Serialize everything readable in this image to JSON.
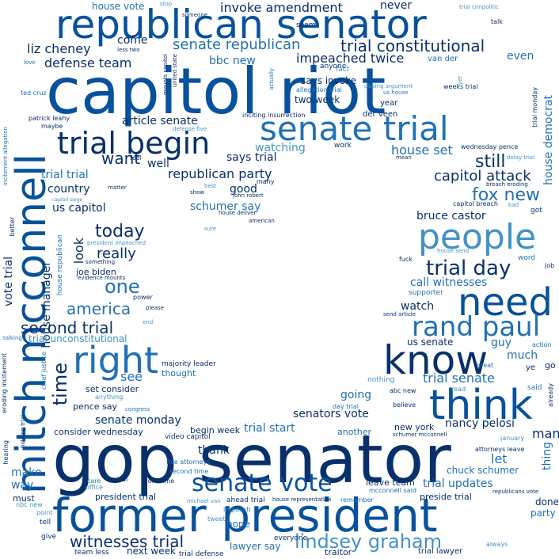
{
  "colors": {
    "background": "#ffffff",
    "palette": [
      "#08306b",
      "#08519c",
      "#2171b5",
      "#4292c6",
      "#6baed6",
      "#9ecae1"
    ]
  },
  "words": {
    "gop_senator": "gop senator",
    "capitol_riot": "capitol riot",
    "former_president": "former president",
    "republican_senator": "republican senator",
    "senate_trial": "senate trial",
    "mitch_mcconnell": "mitch mcconnell",
    "know": "know",
    "need": "need",
    "think": "think",
    "people": "people",
    "right": "right",
    "trial_begin": "trial begin",
    "rand_paul": "rand paul",
    "senate_vote": "senate vote",
    "lindsey_graham": "lindsey graham",
    "trial_day": "trial day",
    "trial_constitutional": "trial constitutional",
    "one": "one",
    "second_trial": "second trial",
    "fox_new": "fox new",
    "today": "today",
    "america": "america",
    "time": "time",
    "witnesses_trial": "witnesses trial",
    "really": "really",
    "want": "want",
    "still": "still",
    "capitol_attack": "capitol attack",
    "senate_republican": "senate republican",
    "republican_party": "republican party",
    "liz_cheney": "liz cheney",
    "defense_team": "defense team",
    "article_senate": "article senate",
    "bbc_new": "bbc new",
    "impeached_twice": "impeached twice",
    "invoke_amendment": "invoke amendment",
    "house_set": "house set",
    "watching": "watching",
    "says_trial": "says trial",
    "schumer_say": "schumer say",
    "bruce_castor": "bruce castor",
    "call_witnesses": "call witnesses",
    "us_capitol": "us capitol",
    "country": "country",
    "good": "good",
    "well": "well",
    "trial_trial": "trial trial",
    "look": "look",
    "vote_trial": "vote trial",
    "house_manager": "house manager",
    "mitch": "mitch",
    "house_democrat": "house democrat",
    "even": "even",
    "never": "never",
    "come": "come",
    "trial_senate": "trial senate",
    "much": "much",
    "guy": "guy",
    "us_senate": "us senate",
    "watch": "watch",
    "let": "let",
    "nancy_pelosi": "nancy pelosi",
    "senators_vote": "senators vote",
    "trial_start": "trial start",
    "going": "going",
    "senate_monday": "senate monday",
    "see": "see",
    "make": "make",
    "way": "way",
    "thank": "thank",
    "trial_updates": "trial updates",
    "man": "man",
    "thing": "thing",
    "chuck_schumer": "chuck schumer",
    "next_week": "next week",
    "lawyer_say": "lawyer say",
    "party": "party",
    "done": "done",
    "hope": "hope",
    "house_vote": "house vote",
    "says_invoke": "says invoke",
    "two_week": "two week",
    "year": "year",
    "van_der": "van der",
    "der_veen": "der veen",
    "joe_biden": "joe biden",
    "house_republican": "house republican",
    "trial_unconstitutional": "trial unconstitutional",
    "set_consider": "set consider",
    "thought": "thought",
    "majority_leader": "majority leader",
    "pence_say": "pence say",
    "consider_wednesday": "consider wednesday",
    "begin_week": "begin week",
    "video_capitol": "video capitol",
    "new_york": "new york",
    "another": "another",
    "president_trial": "president trial",
    "must": "must",
    "preside_trial": "preside trial",
    "leave_team": "leave team",
    "traitor": "traitor",
    "trial_lawyer": "trial lawyer",
    "team_less": "team less",
    "trial_defense": "trial defense",
    "everyone": "everyone",
    "tell": "tell",
    "give": "give",
    "point": "point",
    "nbc_new": "nbc new",
    "ahead_trial": "ahead trial",
    "impeach": "impeach",
    "tweet": "tweet",
    "remember": "remember",
    "mcconnell_said": "mcconnell said",
    "house_representative": "house representative",
    "michael_van": "michael van",
    "york_time": "york time",
    "real": "real",
    "care": "care",
    "office": "office",
    "second_time": "second time",
    "five_attorneys": "five attorneys",
    "attorneys_leave": "attorneys leave",
    "january": "january",
    "schumer_mcconnell": "schumer mcconnell",
    "republicans_vote": "republicans vote",
    "always": "always",
    "nothing": "nothing",
    "abc_new": "abc new",
    "believe": "believe",
    "day_trial": "day trial",
    "read": "read",
    "said": "said",
    "already": "already",
    "ye": "ye",
    "go": "go",
    "action": "action",
    "great": "great",
    "send_article": "send article",
    "supporter": "supporter",
    "fuck": "fuck",
    "word": "word",
    "job": "job",
    "house_send": "house send",
    "got": "got",
    "bad": "bad",
    "capitol_breach": "capitol breach",
    "breach_eroding": "breach eroding",
    "delay_trial": "delay trial",
    "wednesday_pence": "wednesday pence",
    "mean": "mean",
    "work": "work",
    "trial_monday": "trial monday",
    "weeks_trial": "weeks trial",
    "closing_argument": "closing argument",
    "yet": "yet",
    "talk": "talk",
    "trial_cnnpolitic": "trial cnnpolitic",
    "stop": "stop",
    "seem": "seem",
    "us_house": "us house",
    "actually": "actually",
    "allegation_trial": "allegation trial",
    "fact": "fact",
    "anyone": "anyone",
    "inciting_insurrection": "inciting insurrection",
    "many": "many",
    "john_robert": "john robert",
    "house_deliver": "house deliver",
    "american": "american",
    "show": "show",
    "best": "best",
    "feel": "feel",
    "defense_five": "defense five",
    "mounts_capitol": "mounts capitol",
    "united_state": "united state",
    "someone": "someone",
    "ted_cruz": "ted cruz",
    "patrick_leahy": "patrick leahy",
    "maybe": "maybe",
    "incitement_allegation": "incitement allegation",
    "matter": "matter",
    "capitol_siege": "capitol siege",
    "better": "better",
    "president_impeached": "president impeached",
    "something": "something",
    "evidence_mounts": "evidence mounts",
    "power": "power",
    "please": "please",
    "end": "end",
    "talking": "talking",
    "chief_justice": "chief justice",
    "eroding_incitement": "eroding incitement",
    "holding_trial": "holding trial",
    "anything": "anything",
    "congress": "congress",
    "hearing": "hearing",
    "sure": "sure",
    "less_two": "less two",
    "love": "love"
  }
}
